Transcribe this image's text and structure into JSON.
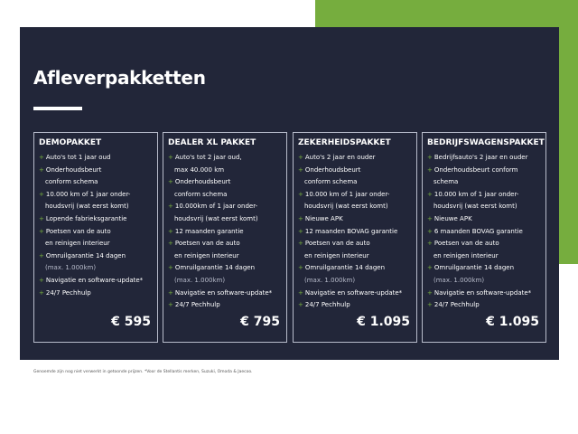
{
  "title": "Afleverpakketten",
  "colors": {
    "navy": "#222639",
    "green": "#76ad3e"
  },
  "packages": [
    {
      "name": "DEMOPAKKET",
      "price": "€ 595",
      "items": [
        [
          "+",
          "Auto's tot 1 jaar oud"
        ],
        [
          "+",
          "Onderhoudsbeurt"
        ],
        [
          "",
          "conform schema"
        ],
        [
          "+",
          "10.000 km of 1 jaar onder-"
        ],
        [
          "",
          "houdsvrij (wat eerst komt)"
        ],
        [
          "+",
          "Lopende fabrieksgarantie"
        ],
        [
          "+",
          "Poetsen van de auto"
        ],
        [
          "",
          "en reinigen interieur"
        ],
        [
          "+",
          "Omruilgarantie 14 dagen"
        ],
        [
          "",
          "(max. 1.000km)"
        ],
        [
          "+",
          "Navigatie en software-update*"
        ],
        [
          "+",
          "24/7 Pechhulp"
        ]
      ]
    },
    {
      "name": "DEALER XL PAKKET",
      "price": "€ 795",
      "items": [
        [
          "+",
          "Auto's tot 2 jaar oud,"
        ],
        [
          "",
          "max 40.000 km"
        ],
        [
          "+",
          "Onderhoudsbeurt"
        ],
        [
          "",
          "conform schema"
        ],
        [
          "+",
          "10.000km of 1 jaar onder-"
        ],
        [
          "",
          "houdsvrij (wat eerst komt)"
        ],
        [
          "+",
          "12 maanden garantie"
        ],
        [
          "+",
          "Poetsen van de auto"
        ],
        [
          "",
          "en reinigen interieur"
        ],
        [
          "+",
          "Omruilgarantie 14 dagen"
        ],
        [
          "",
          "(max. 1.000km)"
        ],
        [
          "+",
          "Navigatie en software-update*"
        ],
        [
          "+",
          "24/7 Pechhulp"
        ]
      ]
    },
    {
      "name": "ZEKERHEIDSPAKKET",
      "price": "€ 1.095",
      "items": [
        [
          "+",
          "Auto's 2 jaar en ouder"
        ],
        [
          "+",
          "Onderhoudsbeurt"
        ],
        [
          "",
          "conform schema"
        ],
        [
          "+",
          "10.000 km of 1 jaar onder-"
        ],
        [
          "",
          "houdsvrij (wat eerst komt)"
        ],
        [
          "+",
          "Nieuwe APK"
        ],
        [
          "+",
          "12 maanden BOVAG garantie"
        ],
        [
          "+",
          "Poetsen van de auto"
        ],
        [
          "",
          "en reinigen interieur"
        ],
        [
          "+",
          "Omruilgarantie 14 dagen"
        ],
        [
          "",
          "(max. 1.000km)"
        ],
        [
          "+",
          "Navigatie en software-update*"
        ],
        [
          "+",
          "24/7 Pechhulp"
        ]
      ]
    },
    {
      "name": "BEDRIJFSWAGENSPAKKET",
      "price": "€ 1.095",
      "items": [
        [
          "+",
          "Bedrijfsauto's 2 jaar en ouder"
        ],
        [
          "+",
          "Onderhoudsbeurt conform"
        ],
        [
          "",
          "schema"
        ],
        [
          "+",
          "10.000 km of 1 jaar onder-"
        ],
        [
          "",
          "houdsvrij (wat eerst komt)"
        ],
        [
          "+",
          "Nieuwe APK"
        ],
        [
          "+",
          "6 maanden BOVAG garantie"
        ],
        [
          "+",
          "Poetsen van de auto"
        ],
        [
          "",
          "en reinigen interieur"
        ],
        [
          "+",
          "Omruilgarantie 14 dagen"
        ],
        [
          "",
          "(max. 1.000km)"
        ],
        [
          "+",
          "Navigatie en software-update*"
        ],
        [
          "+",
          "24/7 Pechhulp"
        ]
      ]
    }
  ],
  "footnote": "Genoemde zijn nog niet verwerkt in getoonde prijzen. *Voor de Stellantis merken, Suzuki, Omoda & Jaecoo."
}
